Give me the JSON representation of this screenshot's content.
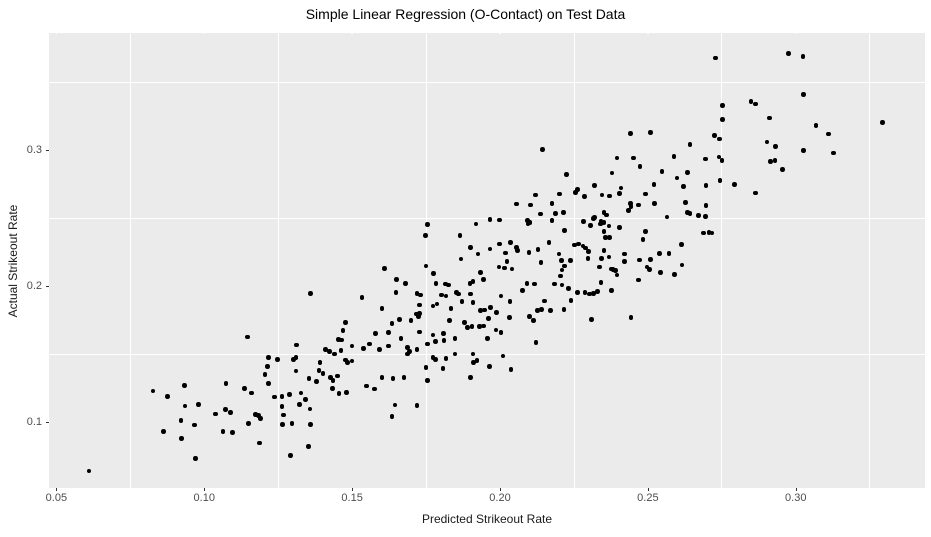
{
  "chart_data": {
    "type": "scatter",
    "title": "Simple Linear Regression (O-Contact) on Test Data",
    "xlabel": "Predicted Strikeout Rate",
    "ylabel": "Actual Strikeout Rate",
    "xlim": [
      0.0475,
      0.3437
    ],
    "ylim": [
      0.0515,
      0.3865
    ],
    "x_major_ticks": [
      0.05,
      0.1,
      0.15,
      0.2,
      0.25,
      0.3
    ],
    "x_tick_labels": [
      "0.05",
      "0.10",
      "0.15",
      "0.20",
      "0.25",
      "0.30"
    ],
    "x_minor_ticks": [
      0.075,
      0.125,
      0.175,
      0.225,
      0.275,
      0.325
    ],
    "y_major_ticks": [
      0.1,
      0.2,
      0.3
    ],
    "y_tick_labels": [
      "0.1",
      "0.2",
      "0.3"
    ],
    "y_minor_ticks": [
      0.15,
      0.25,
      0.35
    ],
    "grid": true,
    "legend": false,
    "colors": {
      "figure_bg": "#FFFFFF",
      "panel_bg": "#EBEBEB",
      "grid": "#FFFFFF",
      "point": "#000000",
      "tick_text": "#4D4D4D",
      "axis_title": "#1A1A1A",
      "title": "#000000",
      "tick_mark": "#333333"
    },
    "points": [
      [
        0.061,
        0.064
      ],
      [
        0.0826,
        0.123
      ],
      [
        0.0876,
        0.119
      ],
      [
        0.0933,
        0.127
      ],
      [
        0.0935,
        0.112
      ],
      [
        0.0981,
        0.113
      ],
      [
        0.0921,
        0.101
      ],
      [
        0.0863,
        0.093
      ],
      [
        0.0967,
        0.098
      ],
      [
        0.0924,
        0.088
      ],
      [
        0.0971,
        0.073
      ],
      [
        0.1037,
        0.106
      ],
      [
        0.1072,
        0.1095
      ],
      [
        0.1088,
        0.107
      ],
      [
        0.1073,
        0.1286
      ],
      [
        0.1063,
        0.093
      ],
      [
        0.1096,
        0.0925
      ],
      [
        0.1147,
        0.1628
      ],
      [
        0.1136,
        0.1249
      ],
      [
        0.1159,
        0.1215
      ],
      [
        0.1149,
        0.0992
      ],
      [
        0.1186,
        0.0845
      ],
      [
        0.1206,
        0.1349
      ],
      [
        0.1214,
        0.1411
      ],
      [
        0.1173,
        0.1057
      ],
      [
        0.1184,
        0.1048
      ],
      [
        0.119,
        0.1028
      ],
      [
        0.161,
        0.213
      ],
      [
        0.175,
        0.215
      ],
      [
        0.165,
        0.205
      ],
      [
        0.168,
        0.202
      ],
      [
        0.136,
        0.1948
      ],
      [
        0.1311,
        0.1568
      ],
      [
        0.1217,
        0.1474
      ],
      [
        0.1217,
        0.1283
      ],
      [
        0.1248,
        0.1459
      ],
      [
        0.131,
        0.1474
      ],
      [
        0.1301,
        0.1462
      ],
      [
        0.131,
        0.1376
      ],
      [
        0.1388,
        0.1381
      ],
      [
        0.1354,
        0.132
      ],
      [
        0.138,
        0.1297
      ],
      [
        0.145,
        0.1339
      ],
      [
        0.1434,
        0.1248
      ],
      [
        0.1456,
        0.1209
      ],
      [
        0.1481,
        0.1216
      ],
      [
        0.1238,
        0.1184
      ],
      [
        0.1263,
        0.1189
      ],
      [
        0.1288,
        0.1204
      ],
      [
        0.1327,
        0.1214
      ],
      [
        0.1263,
        0.1113
      ],
      [
        0.1267,
        0.1052
      ],
      [
        0.1323,
        0.113
      ],
      [
        0.1342,
        0.1167
      ],
      [
        0.1357,
        0.1096
      ],
      [
        0.1645,
        0.1126
      ],
      [
        0.172,
        0.1121
      ],
      [
        0.1635,
        0.1042
      ],
      [
        0.1265,
        0.0981
      ],
      [
        0.1297,
        0.0991
      ],
      [
        0.1359,
        0.0983
      ],
      [
        0.1352,
        0.0819
      ],
      [
        0.1291,
        0.0755
      ],
      [
        0.2382,
        0.2125
      ],
      [
        0.2396,
        0.2083
      ],
      [
        0.2505,
        0.2125
      ],
      [
        0.2542,
        0.21
      ],
      [
        0.2591,
        0.2088
      ],
      [
        0.2616,
        0.2157
      ],
      [
        0.2376,
        0.197
      ],
      [
        0.2469,
        0.2046
      ],
      [
        0.215,
        0.1891
      ],
      [
        0.1755,
        0.2454
      ],
      [
        0.1749,
        0.2375
      ],
      [
        0.1865,
        0.2375
      ],
      [
        0.1919,
        0.2459
      ],
      [
        0.1901,
        0.2287
      ],
      [
        0.1925,
        0.2238
      ],
      [
        0.1868,
        0.2201
      ],
      [
        0.2143,
        0.3006
      ],
      [
        0.2441,
        0.3124
      ],
      [
        0.2509,
        0.3134
      ],
      [
        0.2642,
        0.3043
      ],
      [
        0.2396,
        0.2945
      ],
      [
        0.2452,
        0.2945
      ],
      [
        0.2473,
        0.2883
      ],
      [
        0.2588,
        0.2957
      ],
      [
        0.2695,
        0.2937
      ],
      [
        0.2224,
        0.2822
      ],
      [
        0.2379,
        0.2834
      ],
      [
        0.2548,
        0.2846
      ],
      [
        0.2599,
        0.2797
      ],
      [
        0.2633,
        0.2839
      ],
      [
        0.2263,
        0.2711
      ],
      [
        0.2319,
        0.2741
      ],
      [
        0.2409,
        0.2724
      ],
      [
        0.252,
        0.2748
      ],
      [
        0.2621,
        0.2736
      ],
      [
        0.2522,
        0.2608
      ],
      [
        0.2627,
        0.2618
      ],
      [
        0.2633,
        0.2544
      ],
      [
        0.2642,
        0.2534
      ],
      [
        0.2695,
        0.2515
      ],
      [
        0.2565,
        0.251
      ],
      [
        0.2672,
        0.252
      ],
      [
        0.1966,
        0.2274
      ],
      [
        0.2019,
        0.2245
      ],
      [
        0.2289,
        0.2282
      ],
      [
        0.23,
        0.2257
      ],
      [
        0.254,
        0.224
      ],
      [
        0.2571,
        0.224
      ],
      [
        0.2613,
        0.2306
      ],
      [
        0.2689,
        0.2392
      ],
      [
        0.2509,
        0.2196
      ],
      [
        0.2305,
        0.2446
      ],
      [
        0.2728,
        0.3681
      ],
      [
        0.2975,
        0.3713
      ],
      [
        0.3024,
        0.3693
      ],
      [
        0.3027,
        0.3411
      ],
      [
        0.2753,
        0.333
      ],
      [
        0.2849,
        0.3362
      ],
      [
        0.2864,
        0.3342
      ],
      [
        0.2753,
        0.3227
      ],
      [
        0.2911,
        0.3239
      ],
      [
        0.2725,
        0.3109
      ],
      [
        0.2742,
        0.3084
      ],
      [
        0.3069,
        0.3183
      ],
      [
        0.3294,
        0.3207
      ],
      [
        0.311,
        0.3121
      ],
      [
        0.2903,
        0.3062
      ],
      [
        0.2931,
        0.3031
      ],
      [
        0.3027,
        0.3001
      ],
      [
        0.3128,
        0.2981
      ],
      [
        0.274,
        0.2952
      ],
      [
        0.2751,
        0.2928
      ],
      [
        0.2914,
        0.292
      ],
      [
        0.293,
        0.2928
      ],
      [
        0.2956,
        0.2859
      ],
      [
        0.2744,
        0.2778
      ],
      [
        0.2793,
        0.2748
      ],
      [
        0.2697,
        0.2741
      ],
      [
        0.2864,
        0.2687
      ],
      [
        0.2697,
        0.2594
      ],
      [
        0.2706,
        0.2398
      ],
      [
        0.2717,
        0.2393
      ],
      [
        0.1775,
        0.2095
      ],
      [
        0.1784,
        0.2022
      ],
      [
        0.1815,
        0.2017
      ],
      [
        0.1826,
        0.201
      ],
      [
        0.1803,
        0.1936
      ],
      [
        0.1818,
        0.1929
      ],
      [
        0.1852,
        0.1953
      ],
      [
        0.186,
        0.1943
      ],
      [
        0.1773,
        0.1855
      ],
      [
        0.1787,
        0.187
      ],
      [
        0.1834,
        0.1838
      ],
      [
        0.1871,
        0.1887
      ],
      [
        0.1899,
        0.2022
      ],
      [
        0.1908,
        0.2034
      ],
      [
        0.1935,
        0.21
      ],
      [
        0.1944,
        0.2051
      ],
      [
        0.1901,
        0.1943
      ],
      [
        0.1908,
        0.1879
      ],
      [
        0.1935,
        0.1821
      ],
      [
        0.1947,
        0.1825
      ],
      [
        0.1967,
        0.1845
      ],
      [
        0.1989,
        0.1806
      ],
      [
        0.1829,
        0.1747
      ],
      [
        0.1879,
        0.1732
      ],
      [
        0.189,
        0.1698
      ],
      [
        0.1905,
        0.1703
      ],
      [
        0.1931,
        0.1703
      ],
      [
        0.1944,
        0.1708
      ],
      [
        0.1961,
        0.1764
      ],
      [
        0.1987,
        0.1678
      ],
      [
        0.2003,
        0.1659
      ],
      [
        0.1773,
        0.1641
      ],
      [
        0.1781,
        0.1592
      ],
      [
        0.1809,
        0.1654
      ],
      [
        0.1811,
        0.16
      ],
      [
        0.1848,
        0.1617
      ],
      [
        0.1958,
        0.1617
      ],
      [
        0.1773,
        0.1477
      ],
      [
        0.1781,
        0.1462
      ],
      [
        0.1818,
        0.1469
      ],
      [
        0.1848,
        0.1501
      ],
      [
        0.1908,
        0.1501
      ],
      [
        0.1922,
        0.1452
      ],
      [
        0.1911,
        0.1438
      ],
      [
        0.1807,
        0.1396
      ],
      [
        0.1965,
        0.1408
      ],
      [
        0.1901,
        0.133
      ],
      [
        0.201,
        0.1487
      ],
      [
        0.2037,
        0.1389
      ],
      [
        0.2077,
        0.1968
      ],
      [
        0.2091,
        0.2022
      ],
      [
        0.2116,
        0.2017
      ],
      [
        0.2127,
        0.1821
      ],
      [
        0.2141,
        0.1831
      ],
      [
        0.21,
        0.1776
      ],
      [
        0.2113,
        0.1747
      ],
      [
        0.2032,
        0.1771
      ],
      [
        0.2003,
        0.1929
      ],
      [
        0.2034,
        0.1887
      ],
      [
        0.2122,
        0.1585
      ],
      [
        0.2184,
        0.2017
      ],
      [
        0.2209,
        0.201
      ],
      [
        0.2204,
        0.2076
      ],
      [
        0.2232,
        0.1985
      ],
      [
        0.2262,
        0.1953
      ],
      [
        0.2288,
        0.1953
      ],
      [
        0.2303,
        0.1943
      ],
      [
        0.2316,
        0.1948
      ],
      [
        0.233,
        0.196
      ],
      [
        0.224,
        0.1894
      ],
      [
        0.2217,
        0.183
      ],
      [
        0.217,
        0.1821
      ],
      [
        0.2309,
        0.1757
      ],
      [
        0.2443,
        0.1771
      ],
      [
        0.2341,
        0.2027
      ],
      [
        0.212,
        0.2672
      ],
      [
        0.2202,
        0.268
      ],
      [
        0.2255,
        0.2689
      ],
      [
        0.2286,
        0.266
      ],
      [
        0.2345,
        0.2672
      ],
      [
        0.2371,
        0.2665
      ],
      [
        0.2405,
        0.2684
      ],
      [
        0.2492,
        0.268
      ],
      [
        0.2056,
        0.2606
      ],
      [
        0.2103,
        0.2598
      ],
      [
        0.2176,
        0.2611
      ],
      [
        0.2441,
        0.2611
      ],
      [
        0.2443,
        0.2586
      ],
      [
        0.2469,
        0.2598
      ],
      [
        0.2137,
        0.2532
      ],
      [
        0.2188,
        0.2537
      ],
      [
        0.2214,
        0.2542
      ],
      [
        0.232,
        0.2508
      ],
      [
        0.2351,
        0.2542
      ],
      [
        0.236,
        0.2525
      ],
      [
        0.2435,
        0.2557
      ],
      [
        0.2092,
        0.2483
      ],
      [
        0.2101,
        0.2469
      ],
      [
        0.2094,
        0.2459
      ],
      [
        0.1966,
        0.2493
      ],
      [
        0.1999,
        0.2488
      ],
      [
        0.2176,
        0.2483
      ],
      [
        0.2283,
        0.2476
      ],
      [
        0.2316,
        0.25
      ],
      [
        0.2341,
        0.2476
      ],
      [
        0.2352,
        0.2469
      ],
      [
        0.2339,
        0.2459
      ],
      [
        0.2368,
        0.2444
      ],
      [
        0.2218,
        0.2409
      ],
      [
        0.2352,
        0.2402
      ],
      [
        0.2404,
        0.2434
      ],
      [
        0.2492,
        0.2402
      ],
      [
        0.2484,
        0.2346
      ],
      [
        0.2356,
        0.2361
      ],
      [
        0.237,
        0.2361
      ],
      [
        0.1999,
        0.2311
      ],
      [
        0.2036,
        0.2321
      ],
      [
        0.2056,
        0.2287
      ],
      [
        0.2165,
        0.2321
      ],
      [
        0.2252,
        0.2304
      ],
      [
        0.2266,
        0.2311
      ],
      [
        0.2281,
        0.2296
      ],
      [
        0.206,
        0.2262
      ],
      [
        0.2098,
        0.2247
      ],
      [
        0.2128,
        0.2272
      ],
      [
        0.2199,
        0.2237
      ],
      [
        0.2297,
        0.2206
      ],
      [
        0.2352,
        0.2262
      ],
      [
        0.242,
        0.2237
      ],
      [
        0.2368,
        0.2217
      ],
      [
        0.2024,
        0.2181
      ],
      [
        0.1996,
        0.2141
      ],
      [
        0.2015,
        0.2134
      ],
      [
        0.2041,
        0.2127
      ],
      [
        0.2139,
        0.2174
      ],
      [
        0.2207,
        0.2189
      ],
      [
        0.2218,
        0.215
      ],
      [
        0.221,
        0.2121
      ],
      [
        0.2239,
        0.2189
      ],
      [
        0.2337,
        0.2141
      ],
      [
        0.2344,
        0.2206
      ],
      [
        0.2376,
        0.2127
      ],
      [
        0.239,
        0.2117
      ],
      [
        0.242,
        0.2181
      ],
      [
        0.2472,
        0.2194
      ],
      [
        0.2497,
        0.2141
      ],
      [
        0.1533,
        0.1919
      ],
      [
        0.1649,
        0.1953
      ],
      [
        0.1719,
        0.1948
      ],
      [
        0.1732,
        0.1936
      ],
      [
        0.1601,
        0.1838
      ],
      [
        0.1728,
        0.1862
      ],
      [
        0.1717,
        0.1796
      ],
      [
        0.1728,
        0.1801
      ],
      [
        0.1725,
        0.1776
      ],
      [
        0.1699,
        0.1747
      ],
      [
        0.1635,
        0.1727
      ],
      [
        0.1661,
        0.1757
      ],
      [
        0.1477,
        0.1732
      ],
      [
        0.1469,
        0.1673
      ],
      [
        0.1578,
        0.1653
      ],
      [
        0.1623,
        0.1658
      ],
      [
        0.1665,
        0.1616
      ],
      [
        0.1728,
        0.1665
      ],
      [
        0.1454,
        0.1609
      ],
      [
        0.1465,
        0.1606
      ],
      [
        0.1499,
        0.156
      ],
      [
        0.1539,
        0.1543
      ],
      [
        0.1559,
        0.1575
      ],
      [
        0.1593,
        0.1536
      ],
      [
        0.1424,
        0.1518
      ],
      [
        0.144,
        0.1501
      ],
      [
        0.1409,
        0.1536
      ],
      [
        0.1462,
        0.1526
      ],
      [
        0.1623,
        0.156
      ],
      [
        0.1687,
        0.155
      ],
      [
        0.1694,
        0.1519
      ],
      [
        0.1687,
        0.1501
      ],
      [
        0.1719,
        0.1536
      ],
      [
        0.1755,
        0.1575
      ],
      [
        0.1477,
        0.1457
      ],
      [
        0.1485,
        0.1437
      ],
      [
        0.1499,
        0.1449
      ],
      [
        0.1392,
        0.1438
      ],
      [
        0.1426,
        0.133
      ],
      [
        0.1435,
        0.1305
      ],
      [
        0.1401,
        0.1359
      ],
      [
        0.1548,
        0.1266
      ],
      [
        0.1601,
        0.133
      ],
      [
        0.1638,
        0.1322
      ],
      [
        0.1676,
        0.133
      ],
      [
        0.1575,
        0.1244
      ],
      [
        0.175,
        0.1403
      ],
      [
        0.1755,
        0.1305
      ]
    ]
  }
}
